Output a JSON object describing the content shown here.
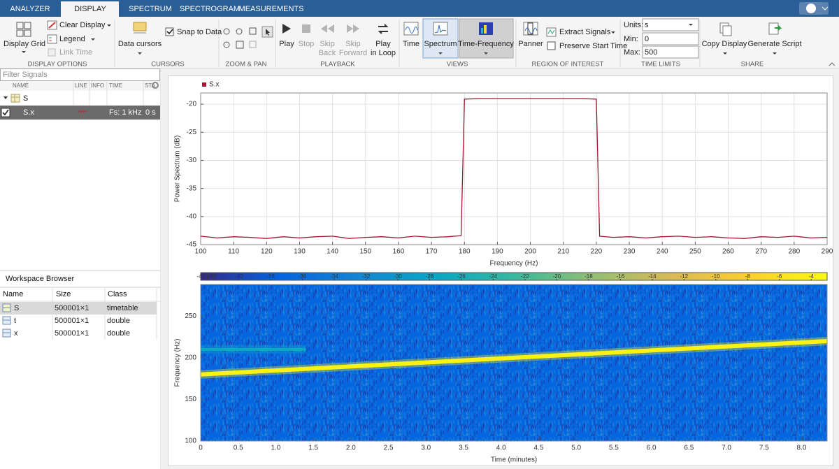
{
  "tabs": [
    "ANALYZER",
    "DISPLAY",
    "SPECTRUM",
    "SPECTROGRAM",
    "MEASUREMENTS"
  ],
  "toolstrip": {
    "display_options": {
      "label": "DISPLAY OPTIONS",
      "display_grid": "Display Grid",
      "clear_display": "Clear Display",
      "legend": "Legend",
      "link_time": "Link Time"
    },
    "cursors": {
      "label": "CURSORS",
      "data_cursors": "Data cursors",
      "snap_to_data": "Snap to Data"
    },
    "zoom_pan": {
      "label": "ZOOM & PAN"
    },
    "playback": {
      "label": "PLAYBACK",
      "play": "Play",
      "stop": "Stop",
      "skip_back": [
        "Skip",
        "Back"
      ],
      "skip_forward": [
        "Skip",
        "Forward"
      ],
      "play_in_loop": [
        "Play",
        "in Loop"
      ]
    },
    "views": {
      "label": "VIEWS",
      "time": "Time",
      "spectrum": "Spectrum",
      "time_frequency": "Time-Frequency"
    },
    "region_of_interest": {
      "label": "REGION OF INTEREST",
      "panner": "Panner",
      "extract_signals": "Extract Signals",
      "preserve_start_time": "Preserve Start Time"
    },
    "time_limits": {
      "label": "TIME LIMITS",
      "units_label": "Units:",
      "units": "s",
      "min_label": "Min:",
      "min": 0,
      "max_label": "Max:",
      "max": 500
    },
    "share": {
      "label": "SHARE",
      "copy_display": "Copy Display",
      "generate_script": "Generate Script"
    }
  },
  "signal_table": {
    "filter_placeholder": "Filter Signals",
    "columns": [
      "NAME",
      "LINE",
      "INFO",
      "TIME",
      "STA"
    ],
    "rows": [
      {
        "name": "S"
      },
      {
        "name": "S.x",
        "info": "Fs: 1 kHz",
        "time": "0 s"
      }
    ]
  },
  "workspace_browser": {
    "title": "Workspace Browser",
    "columns": [
      "Name",
      "Size",
      "Class"
    ],
    "rows": [
      [
        "S",
        "500001×1",
        "timetable"
      ],
      [
        "t",
        "500001×1",
        "double"
      ],
      [
        "x",
        "500001×1",
        "double"
      ]
    ]
  },
  "chart_data": [
    {
      "type": "line",
      "xlabel": "Frequency (Hz)",
      "ylabel": "Power Spectrum (dB)",
      "grid": true,
      "legend": "top-left",
      "xlim": [
        100,
        290
      ],
      "ylim": [
        -45,
        -18
      ],
      "xticks": [
        100,
        110,
        120,
        130,
        140,
        150,
        160,
        170,
        180,
        190,
        200,
        210,
        220,
        230,
        240,
        250,
        260,
        270,
        280,
        290
      ],
      "yticks": [
        -45,
        -40,
        -35,
        -30,
        -25,
        -20
      ],
      "x": [
        100,
        105,
        110,
        115,
        120,
        125,
        130,
        135,
        140,
        145,
        150,
        155,
        160,
        165,
        170,
        175,
        179,
        180,
        185,
        190,
        195,
        200,
        205,
        210,
        215,
        220,
        221,
        225,
        230,
        235,
        240,
        245,
        250,
        255,
        260,
        265,
        270,
        275,
        280,
        285,
        290
      ],
      "series": [
        {
          "name": "S.x",
          "color": "#a2142f",
          "values": [
            -43.5,
            -43.8,
            -43.6,
            -43.7,
            -43.9,
            -43.6,
            -43.8,
            -43.6,
            -43.5,
            -43.9,
            -43.7,
            -43.6,
            -43.8,
            -43.5,
            -43.7,
            -43.6,
            -43.4,
            -19.1,
            -19,
            -19,
            -19,
            -19,
            -19,
            -19,
            -19,
            -19.1,
            -43.5,
            -43.7,
            -43.6,
            -43.8,
            -43.6,
            -43.5,
            -43.7,
            -43.6,
            -43.8,
            -43.9,
            -43.6,
            -43.7,
            -43.5,
            -43.8,
            -43.7
          ]
        }
      ]
    },
    {
      "type": "spectrogram",
      "xlabel": "Time (minutes)",
      "ylabel": "Frequency (Hz)",
      "xlim": [
        0,
        8.34
      ],
      "ylim": [
        100,
        288
      ],
      "xticks": [
        0,
        0.5,
        {
          "value": 1,
          "label": "1.0"
        },
        1.5,
        {
          "value": 2,
          "label": "2.0"
        },
        2.5,
        {
          "value": 3,
          "label": "3.0"
        },
        3.5,
        {
          "value": 4,
          "label": "4.0"
        },
        4.5,
        {
          "value": 5,
          "label": "5.0"
        },
        5.5,
        {
          "value": 6,
          "label": "6.0"
        },
        6.5,
        {
          "value": 7,
          "label": "7.0"
        },
        7.5,
        {
          "value": 8,
          "label": "8.0"
        }
      ],
      "yticks": [
        100,
        150,
        200,
        250
      ],
      "colormap": "parula",
      "clim": [
        -42.4,
        -3
      ],
      "cticks": [
        {
          "value": -42,
          "label": "-42 (dB)"
        },
        -40,
        -38,
        -36,
        -34,
        -32,
        -30,
        -28,
        -26,
        -24,
        -22,
        -20,
        -18,
        -16,
        -14,
        -12,
        -10,
        -8,
        -6,
        -4
      ],
      "background_level": -37,
      "tracks": [
        {
          "x": [
            0,
            8.34
          ],
          "y": [
            180,
            220
          ],
          "level": -4
        },
        {
          "x": [
            0,
            1.4
          ],
          "y": [
            210,
            210
          ],
          "level": -27
        }
      ]
    }
  ]
}
